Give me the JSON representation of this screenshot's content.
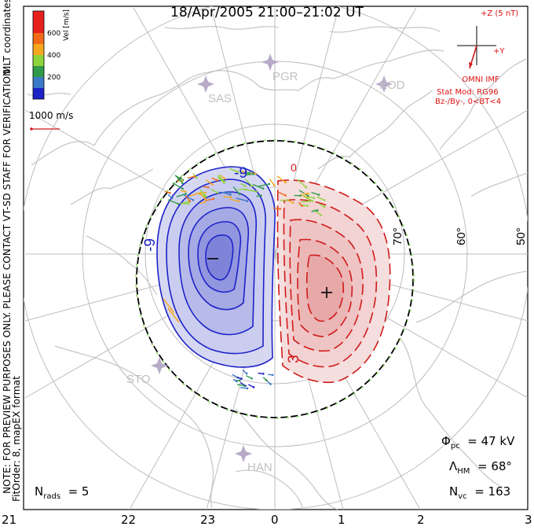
{
  "title": "18/Apr/2005 21:00–21:02 UT",
  "notes": {
    "line1": "MLT coordinates",
    "line2": "NOTE: FOR PREVIEW PURPOSES ONLY. PLEASE CONTACT VT-SD STAFF FOR VERIFICATION.",
    "line3": "FitOrder: 8, mapEX format"
  },
  "colorbar": {
    "label": "Vel [m/s]",
    "ticks": [
      "600",
      "400",
      "200"
    ],
    "colors": [
      "#e8201c",
      "#f06a1a",
      "#f5a81e",
      "#8ed43a",
      "#2f9a4a",
      "#3c78c8",
      "#1d22c8"
    ]
  },
  "vector_scale": "1000 m/s",
  "imf": {
    "label_z": "+Z (5 nT)",
    "label_y": "+Y",
    "source": "OMNI IMF",
    "model": "Stat Mod: RG96",
    "condition": "Bz-/By-, 0<BT<4"
  },
  "stations": [
    "PGR",
    "SAS",
    "KOD",
    "STO",
    "HAN"
  ],
  "lat_labels": [
    "70°",
    "60°",
    "50°"
  ],
  "contour_labels": [
    "-9",
    "-9",
    "3",
    "0"
  ],
  "stats": {
    "phi_pc": {
      "symbol": "Φ",
      "sub": "pc",
      "value": "47 kV"
    },
    "lambda_hm": {
      "symbol": "Λ",
      "sub": "HM",
      "value": "68°"
    },
    "n_vc": {
      "symbol": "N",
      "sub": "vc",
      "value": "163"
    },
    "n_rads": {
      "symbol": "N",
      "sub": "rads",
      "value": "5"
    }
  },
  "mlt_ticks": [
    "21",
    "22",
    "23",
    "0",
    "1",
    "2",
    "3"
  ],
  "chart_data": {
    "type": "heatmap",
    "description_units": "electric potential contours in MLT coordinates",
    "potential_extrema_kV": {
      "min": -9,
      "max": 3
    },
    "cross_polar_cap_potential_kV": 47,
    "heppner_maynard_latitude_deg": 68,
    "n_vectors": 163,
    "n_radars": 5,
    "latitude_circles_deg": [
      70,
      60,
      50
    ],
    "mlt_axis": [
      21,
      22,
      23,
      0,
      1,
      2,
      3
    ],
    "velocity_colorbar_m_per_s": [
      0,
      600
    ]
  }
}
